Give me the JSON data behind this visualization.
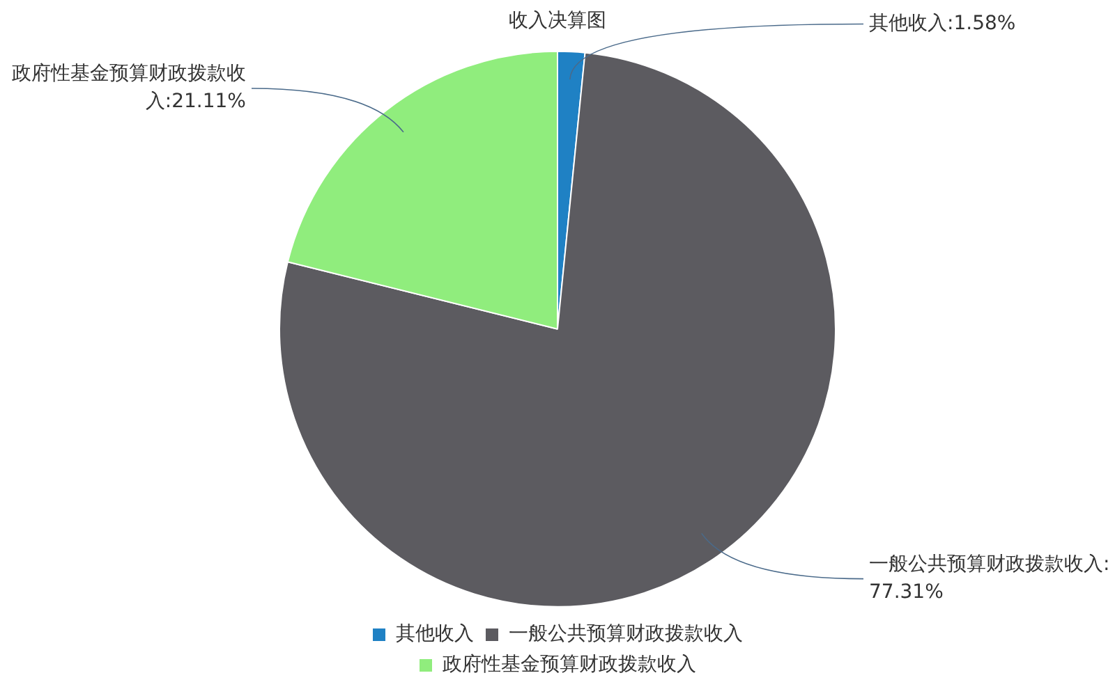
{
  "chart_data": {
    "type": "pie",
    "title": "收入决算图",
    "categories": [
      "其他收入",
      "一般公共预算财政拨款收入",
      "政府性基金预算财政拨款收入"
    ],
    "values": [
      1.58,
      77.31,
      21.11
    ],
    "colors": [
      "#1f81c4",
      "#5c5b60",
      "#90ed7d"
    ],
    "value_labels": [
      "其他收入:1.58%",
      "一般公共预算财政拨款收入:77.31%",
      "政府性基金预算财政拨款收入:21.11%"
    ],
    "legend": "bottom"
  }
}
